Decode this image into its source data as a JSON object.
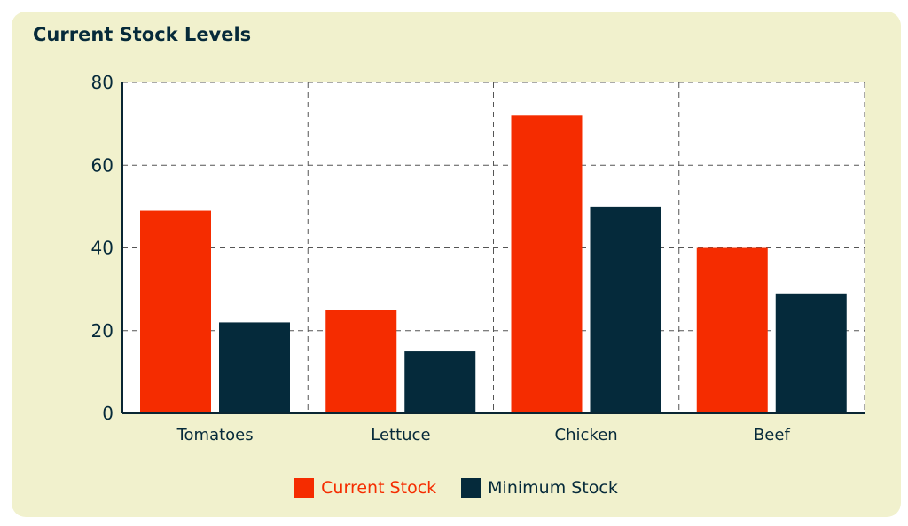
{
  "chart_data": {
    "type": "bar",
    "title": "Current Stock Levels",
    "xlabel": "",
    "ylabel": "",
    "categories": [
      "Tomatoes",
      "Lettuce",
      "Chicken",
      "Beef"
    ],
    "series": [
      {
        "name": "Current Stock",
        "values": [
          49,
          25,
          72,
          40
        ],
        "color": "#f52c00"
      },
      {
        "name": "Minimum Stock",
        "values": [
          22,
          15,
          50,
          29
        ],
        "color": "#052a3b"
      }
    ],
    "ylim": [
      0,
      80
    ],
    "yticks": [
      "0",
      "20",
      "40",
      "60",
      "80"
    ],
    "grid": true,
    "legend": "bottom-center"
  }
}
